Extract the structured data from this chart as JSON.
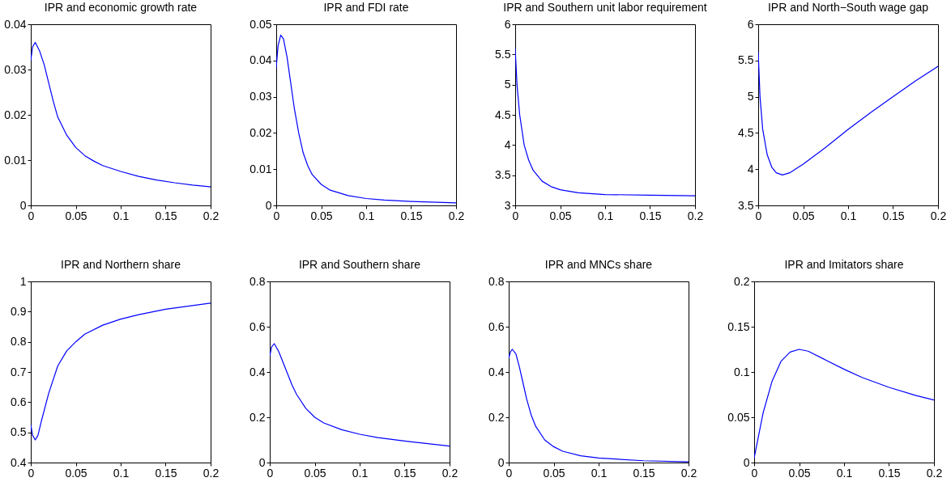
{
  "chart_data": [
    {
      "type": "line",
      "title": "IPR and economic growth rate",
      "x": [
        0,
        0.002,
        0.005,
        0.01,
        0.015,
        0.02,
        0.025,
        0.03,
        0.04,
        0.05,
        0.06,
        0.07,
        0.08,
        0.1,
        0.12,
        0.14,
        0.16,
        0.18,
        0.2
      ],
      "values": [
        0.032,
        0.035,
        0.036,
        0.034,
        0.031,
        0.027,
        0.023,
        0.0195,
        0.0155,
        0.0128,
        0.011,
        0.0098,
        0.0088,
        0.0075,
        0.0064,
        0.0056,
        0.005,
        0.0045,
        0.0041
      ],
      "color": "#0000ff",
      "xlim": [
        0,
        0.2
      ],
      "xticks": [
        0,
        0.05,
        0.1,
        0.15,
        0.2
      ],
      "ylim": [
        0,
        0.04
      ],
      "yticks": [
        0,
        0.01,
        0.02,
        0.03,
        0.04
      ],
      "line_style": "solid"
    },
    {
      "type": "line",
      "title": "IPR and FDI rate",
      "x": [
        0,
        0.002,
        0.005,
        0.008,
        0.012,
        0.016,
        0.02,
        0.025,
        0.03,
        0.035,
        0.04,
        0.05,
        0.06,
        0.08,
        0.1,
        0.12,
        0.15,
        0.2
      ],
      "values": [
        0.038,
        0.044,
        0.047,
        0.046,
        0.041,
        0.034,
        0.027,
        0.02,
        0.0145,
        0.011,
        0.0085,
        0.0058,
        0.0042,
        0.0027,
        0.0019,
        0.0015,
        0.0011,
        0.0007
      ],
      "color": "#0000ff",
      "xlim": [
        0,
        0.2
      ],
      "xticks": [
        0,
        0.05,
        0.1,
        0.15,
        0.2
      ],
      "ylim": [
        0,
        0.05
      ],
      "yticks": [
        0,
        0.01,
        0.02,
        0.03,
        0.04,
        0.05
      ],
      "line_style": "solid"
    },
    {
      "type": "line",
      "title": "IPR and Southern unit labor requirement",
      "x": [
        0,
        0.002,
        0.005,
        0.01,
        0.015,
        0.02,
        0.03,
        0.04,
        0.05,
        0.07,
        0.1,
        0.15,
        0.2
      ],
      "values": [
        5.6,
        5.0,
        4.5,
        4.0,
        3.75,
        3.58,
        3.4,
        3.31,
        3.26,
        3.21,
        3.18,
        3.17,
        3.16
      ],
      "color": "#0000ff",
      "xlim": [
        0,
        0.2
      ],
      "xticks": [
        0,
        0.05,
        0.1,
        0.15,
        0.2
      ],
      "ylim": [
        3,
        6
      ],
      "yticks": [
        3,
        3.5,
        4,
        4.5,
        5,
        5.5,
        6
      ],
      "line_style": "solid"
    },
    {
      "type": "line",
      "title": "IPR and North−South wage gap",
      "x": [
        0,
        0.002,
        0.005,
        0.01,
        0.015,
        0.02,
        0.027,
        0.035,
        0.05,
        0.075,
        0.1,
        0.125,
        0.15,
        0.175,
        0.2
      ],
      "values": [
        5.62,
        5.0,
        4.55,
        4.2,
        4.03,
        3.95,
        3.92,
        3.95,
        4.07,
        4.3,
        4.55,
        4.78,
        5.0,
        5.22,
        5.42
      ],
      "color": "#0000ff",
      "xlim": [
        0,
        0.2
      ],
      "xticks": [
        0,
        0.05,
        0.1,
        0.15,
        0.2
      ],
      "ylim": [
        3.5,
        6
      ],
      "yticks": [
        3.5,
        4,
        4.5,
        5,
        5.5,
        6
      ],
      "line_style": "solid"
    },
    {
      "type": "line",
      "title": "IPR and Northern share",
      "x": [
        0,
        0.002,
        0.005,
        0.008,
        0.012,
        0.02,
        0.03,
        0.04,
        0.05,
        0.06,
        0.08,
        0.1,
        0.12,
        0.15,
        0.2
      ],
      "values": [
        0.525,
        0.49,
        0.475,
        0.49,
        0.54,
        0.63,
        0.72,
        0.77,
        0.8,
        0.825,
        0.855,
        0.875,
        0.89,
        0.908,
        0.928
      ],
      "color": "#0000ff",
      "xlim": [
        0,
        0.2
      ],
      "xticks": [
        0,
        0.05,
        0.1,
        0.15,
        0.2
      ],
      "ylim": [
        0.4,
        1
      ],
      "yticks": [
        0.4,
        0.5,
        0.6,
        0.7,
        0.8,
        0.9,
        1
      ],
      "line_style": "solid"
    },
    {
      "type": "line",
      "title": "IPR and Southern share",
      "x": [
        0,
        0.002,
        0.005,
        0.01,
        0.015,
        0.02,
        0.025,
        0.03,
        0.04,
        0.05,
        0.06,
        0.08,
        0.1,
        0.12,
        0.15,
        0.2
      ],
      "values": [
        0.47,
        0.51,
        0.525,
        0.49,
        0.44,
        0.39,
        0.34,
        0.3,
        0.24,
        0.2,
        0.175,
        0.145,
        0.125,
        0.11,
        0.095,
        0.073
      ],
      "color": "#0000ff",
      "xlim": [
        0,
        0.2
      ],
      "xticks": [
        0,
        0.05,
        0.1,
        0.15,
        0.2
      ],
      "ylim": [
        0,
        0.8
      ],
      "yticks": [
        0,
        0.2,
        0.4,
        0.6,
        0.8
      ],
      "line_style": "solid"
    },
    {
      "type": "line",
      "title": "IPR and MNCs share",
      "x": [
        0,
        0.002,
        0.004,
        0.008,
        0.012,
        0.016,
        0.02,
        0.025,
        0.03,
        0.04,
        0.05,
        0.06,
        0.08,
        0.1,
        0.15,
        0.2
      ],
      "values": [
        0.46,
        0.49,
        0.5,
        0.48,
        0.42,
        0.35,
        0.28,
        0.21,
        0.16,
        0.1,
        0.07,
        0.05,
        0.03,
        0.02,
        0.008,
        0.003
      ],
      "color": "#0000ff",
      "xlim": [
        0,
        0.2
      ],
      "xticks": [
        0,
        0.05,
        0.1,
        0.15,
        0.2
      ],
      "ylim": [
        0,
        0.8
      ],
      "yticks": [
        0,
        0.2,
        0.4,
        0.6,
        0.8
      ],
      "line_style": "solid"
    },
    {
      "type": "line",
      "title": "IPR and Imitators share",
      "x": [
        0,
        0.005,
        0.01,
        0.02,
        0.03,
        0.04,
        0.05,
        0.06,
        0.08,
        0.1,
        0.12,
        0.15,
        0.18,
        0.2
      ],
      "values": [
        0.005,
        0.03,
        0.055,
        0.09,
        0.112,
        0.122,
        0.125,
        0.123,
        0.113,
        0.103,
        0.094,
        0.083,
        0.074,
        0.069
      ],
      "color": "#0000ff",
      "xlim": [
        0,
        0.2
      ],
      "xticks": [
        0,
        0.05,
        0.1,
        0.15,
        0.2
      ],
      "ylim": [
        0,
        0.2
      ],
      "yticks": [
        0,
        0.05,
        0.1,
        0.15,
        0.2
      ],
      "line_style": "solid"
    }
  ]
}
